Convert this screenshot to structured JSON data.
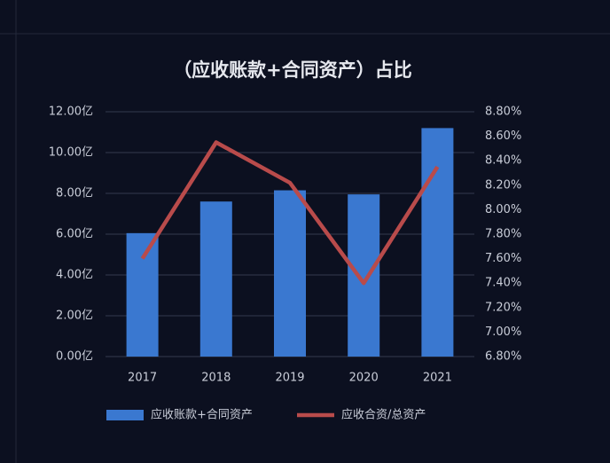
{
  "chart_data": {
    "type": "bar",
    "title": "（应收账款+合同资产）占比",
    "categories": [
      "2017",
      "2018",
      "2019",
      "2020",
      "2021"
    ],
    "series": [
      {
        "name": "应收账款+合同资产",
        "type": "bar",
        "color": "#3a78d0",
        "values": [
          6.05,
          7.6,
          8.15,
          7.95,
          11.2
        ]
      },
      {
        "name": "应收合资/总资产",
        "type": "line",
        "axis": "y2",
        "color": "#b94b4b",
        "values": [
          7.6,
          8.55,
          8.22,
          7.4,
          8.35
        ]
      }
    ],
    "ylim": [
      0,
      12
    ],
    "yticks": [
      {
        "value": 0,
        "label": "0.00亿"
      },
      {
        "value": 2,
        "label": "2.00亿"
      },
      {
        "value": 4,
        "label": "4.00亿"
      },
      {
        "value": 6,
        "label": "6.00亿"
      },
      {
        "value": 8,
        "label": "8.00亿"
      },
      {
        "value": 10,
        "label": "10.00亿"
      },
      {
        "value": 12,
        "label": "12.00亿"
      }
    ],
    "y2lim": [
      6.8,
      8.8
    ],
    "y2ticks": [
      {
        "value": 6.8,
        "label": "6.80%"
      },
      {
        "value": 7.0,
        "label": "7.00%"
      },
      {
        "value": 7.2,
        "label": "7.20%"
      },
      {
        "value": 7.4,
        "label": "7.40%"
      },
      {
        "value": 7.6,
        "label": "7.60%"
      },
      {
        "value": 7.8,
        "label": "7.80%"
      },
      {
        "value": 8.0,
        "label": "8.00%"
      },
      {
        "value": 8.2,
        "label": "8.20%"
      },
      {
        "value": 8.4,
        "label": "8.40%"
      },
      {
        "value": 8.6,
        "label": "8.60%"
      },
      {
        "value": 8.8,
        "label": "8.80%"
      }
    ],
    "grid": true
  }
}
